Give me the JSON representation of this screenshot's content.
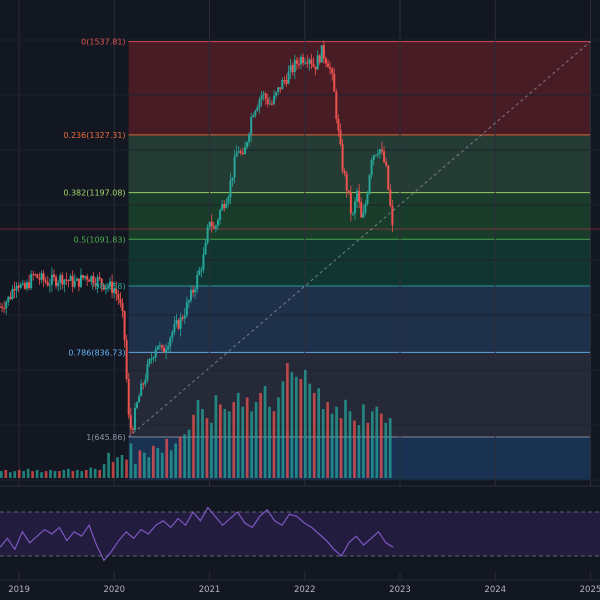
{
  "chart_data": {
    "type": "candlestick",
    "x_axis": {
      "ticks": [
        "2019",
        "2020",
        "2021",
        "2022",
        "2023",
        "2024",
        "2025"
      ],
      "range": [
        2018.8,
        2025.1
      ]
    },
    "price_axis": {
      "range": [
        520,
        1600
      ]
    },
    "fibonacci": {
      "start": {
        "date": 2020.15,
        "price": 645.86
      },
      "end": {
        "date": 2025.0,
        "price": 1537.81
      },
      "levels": [
        {
          "ratio": 0,
          "price": 1537.81,
          "label": "0(1537.81)",
          "color": "#e05252",
          "fill": "#5a1f27"
        },
        {
          "ratio": 0.236,
          "price": 1327.31,
          "label": "0.236(1327.31)",
          "color": "#f06a3a",
          "fill": "#2c4a3b"
        },
        {
          "ratio": 0.382,
          "price": 1197.08,
          "label": "0.382(1197.08)",
          "color": "#a6d96a",
          "fill": "#1e4a2e"
        },
        {
          "ratio": 0.5,
          "price": 1091.83,
          "label": "0.5(1091.83)",
          "color": "#4caf50",
          "fill": "#124238"
        },
        {
          "ratio": 0.618,
          "price": 986.58,
          "label": "(986.58)",
          "color": "#26a69a",
          "fill": "#24395a"
        },
        {
          "ratio": 0.786,
          "price": 836.73,
          "label": "0.786(836.73)",
          "color": "#64b5f6",
          "fill": "#2c3040"
        },
        {
          "ratio": 1,
          "price": 645.86,
          "label": "1(645.86)",
          "color": "#8d93a3",
          "fill": "#1c3a5e"
        }
      ]
    },
    "current_price": 1115,
    "ohlc_close_path": [
      [
        2018.8,
        940
      ],
      [
        2018.9,
        960
      ],
      [
        2018.97,
        1000
      ],
      [
        2019.05,
        975
      ],
      [
        2019.15,
        1010
      ],
      [
        2019.3,
        995
      ],
      [
        2019.45,
        1005
      ],
      [
        2019.6,
        992
      ],
      [
        2019.7,
        1010
      ],
      [
        2019.8,
        1002
      ],
      [
        2019.9,
        990
      ],
      [
        2020.0,
        980
      ],
      [
        2020.05,
        955
      ],
      [
        2020.1,
        900
      ],
      [
        2020.15,
        690
      ],
      [
        2020.18,
        660
      ],
      [
        2020.25,
        730
      ],
      [
        2020.35,
        800
      ],
      [
        2020.45,
        860
      ],
      [
        2020.5,
        835
      ],
      [
        2020.6,
        880
      ],
      [
        2020.7,
        910
      ],
      [
        2020.8,
        960
      ],
      [
        2020.88,
        1010
      ],
      [
        2020.95,
        1060
      ],
      [
        2021.0,
        1140
      ],
      [
        2021.05,
        1110
      ],
      [
        2021.1,
        1150
      ],
      [
        2021.2,
        1200
      ],
      [
        2021.3,
        1300
      ],
      [
        2021.35,
        1270
      ],
      [
        2021.45,
        1380
      ],
      [
        2021.55,
        1420
      ],
      [
        2021.65,
        1395
      ],
      [
        2021.75,
        1440
      ],
      [
        2021.85,
        1470
      ],
      [
        2021.95,
        1500
      ],
      [
        2022.05,
        1505
      ],
      [
        2022.1,
        1480
      ],
      [
        2022.18,
        1515
      ],
      [
        2022.25,
        1490
      ],
      [
        2022.3,
        1440
      ],
      [
        2022.35,
        1335
      ],
      [
        2022.4,
        1250
      ],
      [
        2022.45,
        1200
      ],
      [
        2022.5,
        1135
      ],
      [
        2022.55,
        1200
      ],
      [
        2022.6,
        1125
      ],
      [
        2022.65,
        1190
      ],
      [
        2022.7,
        1280
      ],
      [
        2022.78,
        1300
      ],
      [
        2022.85,
        1255
      ],
      [
        2022.9,
        1160
      ],
      [
        2022.92,
        1115
      ]
    ],
    "volume": [
      6,
      7,
      5,
      6,
      7,
      6,
      8,
      6,
      7,
      5,
      6,
      7,
      6,
      6,
      7,
      8,
      6,
      7,
      6,
      7,
      9,
      8,
      7,
      12,
      22,
      14,
      18,
      20,
      16,
      30,
      12,
      24,
      22,
      18,
      28,
      26,
      22,
      34,
      24,
      30,
      36,
      38,
      42,
      55,
      68,
      60,
      52,
      48,
      72,
      64,
      60,
      58,
      66,
      74,
      62,
      70,
      58,
      66,
      74,
      80,
      62,
      58,
      70,
      84,
      100,
      92,
      88,
      86,
      94,
      82,
      74,
      78,
      60,
      66,
      56,
      62,
      52,
      68,
      58,
      50,
      46,
      64,
      48,
      58,
      62,
      56,
      48,
      52
    ],
    "rsi": {
      "upper": 70,
      "lower": 30,
      "values": [
        38,
        46,
        36,
        52,
        42,
        48,
        54,
        50,
        56,
        44,
        52,
        48,
        58,
        40,
        26,
        34,
        44,
        52,
        46,
        54,
        50,
        58,
        62,
        56,
        64,
        58,
        70,
        62,
        74,
        66,
        58,
        64,
        70,
        60,
        56,
        66,
        72,
        62,
        58,
        68,
        66,
        60,
        56,
        50,
        44,
        36,
        30,
        42,
        48,
        40,
        46,
        52,
        42,
        38
      ]
    }
  }
}
